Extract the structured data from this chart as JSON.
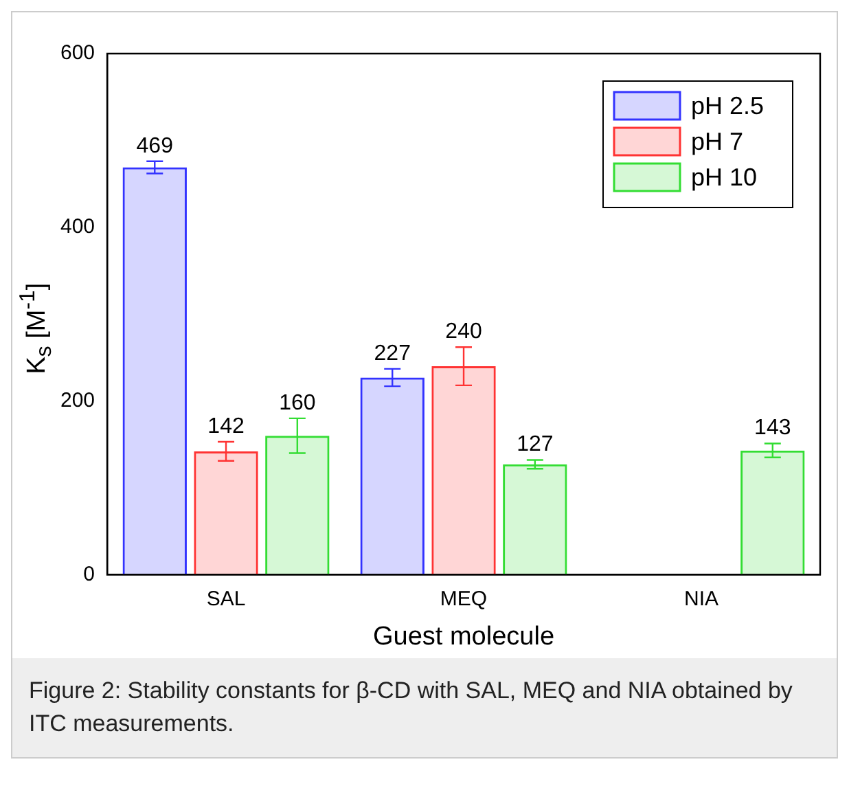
{
  "chart_data": {
    "type": "bar",
    "xlabel": "Guest molecule",
    "ylabel": "K$_{s}$ [M$^{-1}$]",
    "categories": [
      "SAL",
      "MEQ",
      "NIA"
    ],
    "series": [
      {
        "name": "pH 2.5",
        "color": "#3333ff",
        "values": [
          469,
          227,
          null
        ],
        "errors": [
          7,
          10,
          null
        ]
      },
      {
        "name": "pH 7",
        "color": "#ff3333",
        "values": [
          142,
          240,
          null
        ],
        "errors": [
          11,
          22,
          null
        ]
      },
      {
        "name": "pH 10",
        "color": "#33dd33",
        "values": [
          160,
          127,
          143
        ],
        "errors": [
          20,
          5,
          8
        ]
      }
    ],
    "ylim": [
      0,
      600
    ],
    "yticks": [
      0,
      200,
      400,
      600
    ],
    "grid": false,
    "legend": "top right",
    "data_labels": true,
    "annotations": [
      "Figure 2: Stability constants for β-CD with SAL, MEQ and NIA obtained by ITC measurements."
    ]
  }
}
